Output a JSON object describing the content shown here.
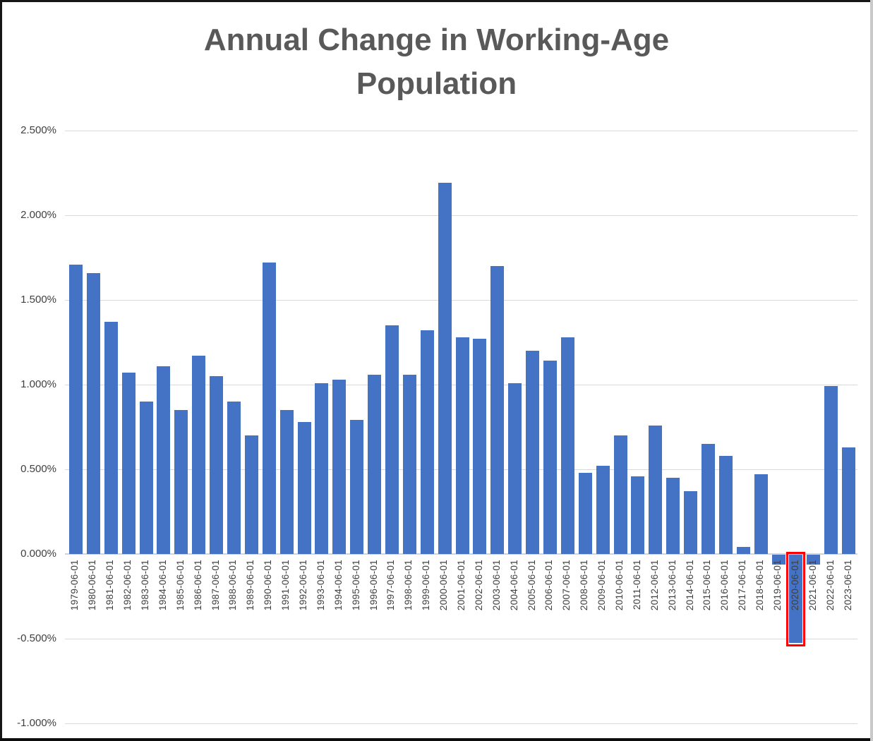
{
  "chart_data": {
    "type": "bar",
    "title": "Annual Change in Working-Age Population",
    "title_lines": [
      "Annual Change in Working-Age",
      "Population"
    ],
    "categories": [
      "1979-06-01",
      "1980-06-01",
      "1981-06-01",
      "1982-06-01",
      "1983-06-01",
      "1984-06-01",
      "1985-06-01",
      "1986-06-01",
      "1987-06-01",
      "1988-06-01",
      "1989-06-01",
      "1990-06-01",
      "1991-06-01",
      "1992-06-01",
      "1993-06-01",
      "1994-06-01",
      "1995-06-01",
      "1996-06-01",
      "1997-06-01",
      "1998-06-01",
      "1999-06-01",
      "2000-06-01",
      "2001-06-01",
      "2002-06-01",
      "2003-06-01",
      "2004-06-01",
      "2005-06-01",
      "2006-06-01",
      "2007-06-01",
      "2008-06-01",
      "2009-06-01",
      "2010-06-01",
      "2011-06-01",
      "2012-06-01",
      "2013-06-01",
      "2014-06-01",
      "2015-06-01",
      "2016-06-01",
      "2017-06-01",
      "2018-06-01",
      "2019-06-01",
      "2020-06-01",
      "2021-06-01",
      "2022-06-01",
      "2023-06-01"
    ],
    "values": [
      1.71,
      1.66,
      1.37,
      1.07,
      0.9,
      1.11,
      0.85,
      1.17,
      1.05,
      0.9,
      0.7,
      1.72,
      0.85,
      0.78,
      1.01,
      1.03,
      0.79,
      1.06,
      1.35,
      1.06,
      1.32,
      2.19,
      1.28,
      1.27,
      1.7,
      1.01,
      1.2,
      1.14,
      1.28,
      0.48,
      0.52,
      0.7,
      0.46,
      0.76,
      0.45,
      0.37,
      0.65,
      0.58,
      0.04,
      0.47,
      -0.06,
      -0.52,
      -0.06,
      0.99,
      0.63
    ],
    "unit": "%",
    "xlabel": "",
    "ylabel": "",
    "ylim": [
      -1.0,
      2.5
    ],
    "grid": true,
    "legend": "none",
    "bar_color": "#4472C4",
    "highlight": {
      "category": "2020-06-01",
      "border_color": "#FF0000"
    },
    "y_axis_ticks": [
      {
        "label": "2.500%",
        "value": 2.5
      },
      {
        "label": "2.000%",
        "value": 2.0
      },
      {
        "label": "1.500%",
        "value": 1.5
      },
      {
        "label": "1.000%",
        "value": 1.0
      },
      {
        "label": "0.500%",
        "value": 0.5
      },
      {
        "label": "0.000%",
        "value": 0.0
      },
      {
        "label": "-0.500%",
        "value": -0.5
      },
      {
        "label": "-1.000%",
        "value": -1.0
      }
    ]
  }
}
